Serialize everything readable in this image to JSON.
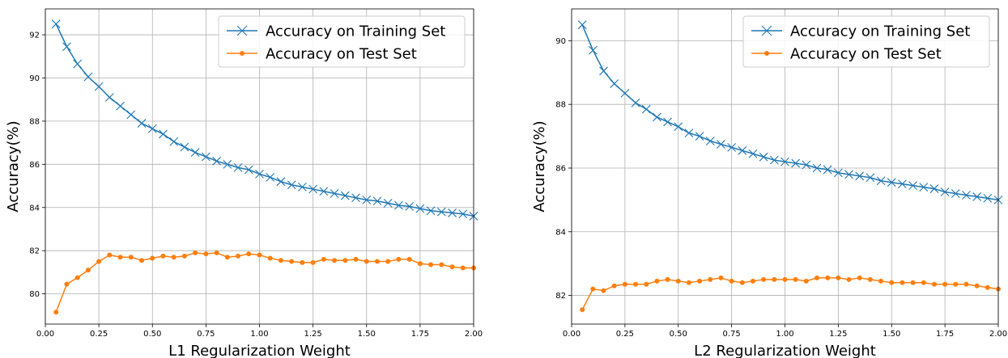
{
  "chart_data": [
    {
      "type": "line",
      "xlabel": "L1 Regularization Weight",
      "ylabel": "Accuracy(%)",
      "xlim": [
        0,
        2.0
      ],
      "ylim": [
        78.6,
        93.2
      ],
      "xticks": [
        "0.00",
        "0.25",
        "0.50",
        "0.75",
        "1.00",
        "1.25",
        "1.50",
        "1.75",
        "2.00"
      ],
      "yticks": [
        "80",
        "82",
        "84",
        "86",
        "88",
        "90",
        "92"
      ],
      "grid": true,
      "legend_position": "top-right",
      "x": [
        0.05,
        0.1,
        0.15,
        0.2,
        0.25,
        0.3,
        0.35,
        0.4,
        0.45,
        0.5,
        0.55,
        0.6,
        0.65,
        0.7,
        0.75,
        0.8,
        0.85,
        0.9,
        0.95,
        1.0,
        1.05,
        1.1,
        1.15,
        1.2,
        1.25,
        1.3,
        1.35,
        1.4,
        1.45,
        1.5,
        1.55,
        1.6,
        1.65,
        1.7,
        1.75,
        1.8,
        1.85,
        1.9,
        1.95,
        2.0
      ],
      "series": [
        {
          "name": "Accuracy on Training Set",
          "color": "#1f77b4",
          "marker": "x",
          "values": [
            92.5,
            91.45,
            90.65,
            90.05,
            89.6,
            89.1,
            88.7,
            88.3,
            87.9,
            87.65,
            87.4,
            87.05,
            86.8,
            86.55,
            86.35,
            86.15,
            86.0,
            85.85,
            85.75,
            85.55,
            85.4,
            85.2,
            85.05,
            84.95,
            84.85,
            84.75,
            84.65,
            84.55,
            84.45,
            84.35,
            84.3,
            84.2,
            84.1,
            84.05,
            83.95,
            83.85,
            83.8,
            83.75,
            83.7,
            83.6
          ]
        },
        {
          "name": "Accuracy on Test Set",
          "color": "#ff7f0e",
          "marker": "o",
          "values": [
            79.15,
            80.45,
            80.75,
            81.1,
            81.5,
            81.8,
            81.7,
            81.7,
            81.55,
            81.65,
            81.75,
            81.7,
            81.75,
            81.9,
            81.85,
            81.9,
            81.7,
            81.75,
            81.85,
            81.8,
            81.65,
            81.55,
            81.5,
            81.45,
            81.45,
            81.6,
            81.55,
            81.55,
            81.6,
            81.5,
            81.5,
            81.5,
            81.6,
            81.6,
            81.4,
            81.35,
            81.35,
            81.25,
            81.2,
            81.2
          ]
        }
      ]
    },
    {
      "type": "line",
      "xlabel": "L2 Regularization Weight",
      "ylabel": "Accuracy(%)",
      "xlim": [
        0,
        2.0
      ],
      "ylim": [
        81.1,
        91.0
      ],
      "xticks": [
        "0.00",
        "0.25",
        "0.50",
        "0.75",
        "1.00",
        "1.25",
        "1.50",
        "1.75",
        "2.00"
      ],
      "yticks": [
        "82",
        "84",
        "86",
        "88",
        "90"
      ],
      "grid": true,
      "legend_position": "top-right",
      "x": [
        0.05,
        0.1,
        0.15,
        0.2,
        0.25,
        0.3,
        0.35,
        0.4,
        0.45,
        0.5,
        0.55,
        0.6,
        0.65,
        0.7,
        0.75,
        0.8,
        0.85,
        0.9,
        0.95,
        1.0,
        1.05,
        1.1,
        1.15,
        1.2,
        1.25,
        1.3,
        1.35,
        1.4,
        1.45,
        1.5,
        1.55,
        1.6,
        1.65,
        1.7,
        1.75,
        1.8,
        1.85,
        1.9,
        1.95,
        2.0
      ],
      "series": [
        {
          "name": "Accuracy on Training Set",
          "color": "#1f77b4",
          "marker": "x",
          "values": [
            90.5,
            89.7,
            89.05,
            88.65,
            88.35,
            88.05,
            87.85,
            87.6,
            87.45,
            87.3,
            87.1,
            87.0,
            86.85,
            86.75,
            86.65,
            86.55,
            86.45,
            86.35,
            86.25,
            86.2,
            86.15,
            86.1,
            86.0,
            85.95,
            85.85,
            85.8,
            85.75,
            85.7,
            85.6,
            85.55,
            85.5,
            85.45,
            85.4,
            85.35,
            85.25,
            85.2,
            85.15,
            85.1,
            85.05,
            85.0
          ]
        },
        {
          "name": "Accuracy on Test Set",
          "color": "#ff7f0e",
          "marker": "o",
          "values": [
            81.55,
            82.2,
            82.15,
            82.3,
            82.35,
            82.35,
            82.35,
            82.45,
            82.5,
            82.45,
            82.4,
            82.45,
            82.5,
            82.55,
            82.45,
            82.4,
            82.45,
            82.5,
            82.5,
            82.5,
            82.5,
            82.45,
            82.55,
            82.55,
            82.55,
            82.5,
            82.55,
            82.5,
            82.45,
            82.4,
            82.4,
            82.4,
            82.4,
            82.35,
            82.35,
            82.35,
            82.35,
            82.3,
            82.25,
            82.2
          ]
        }
      ]
    }
  ]
}
